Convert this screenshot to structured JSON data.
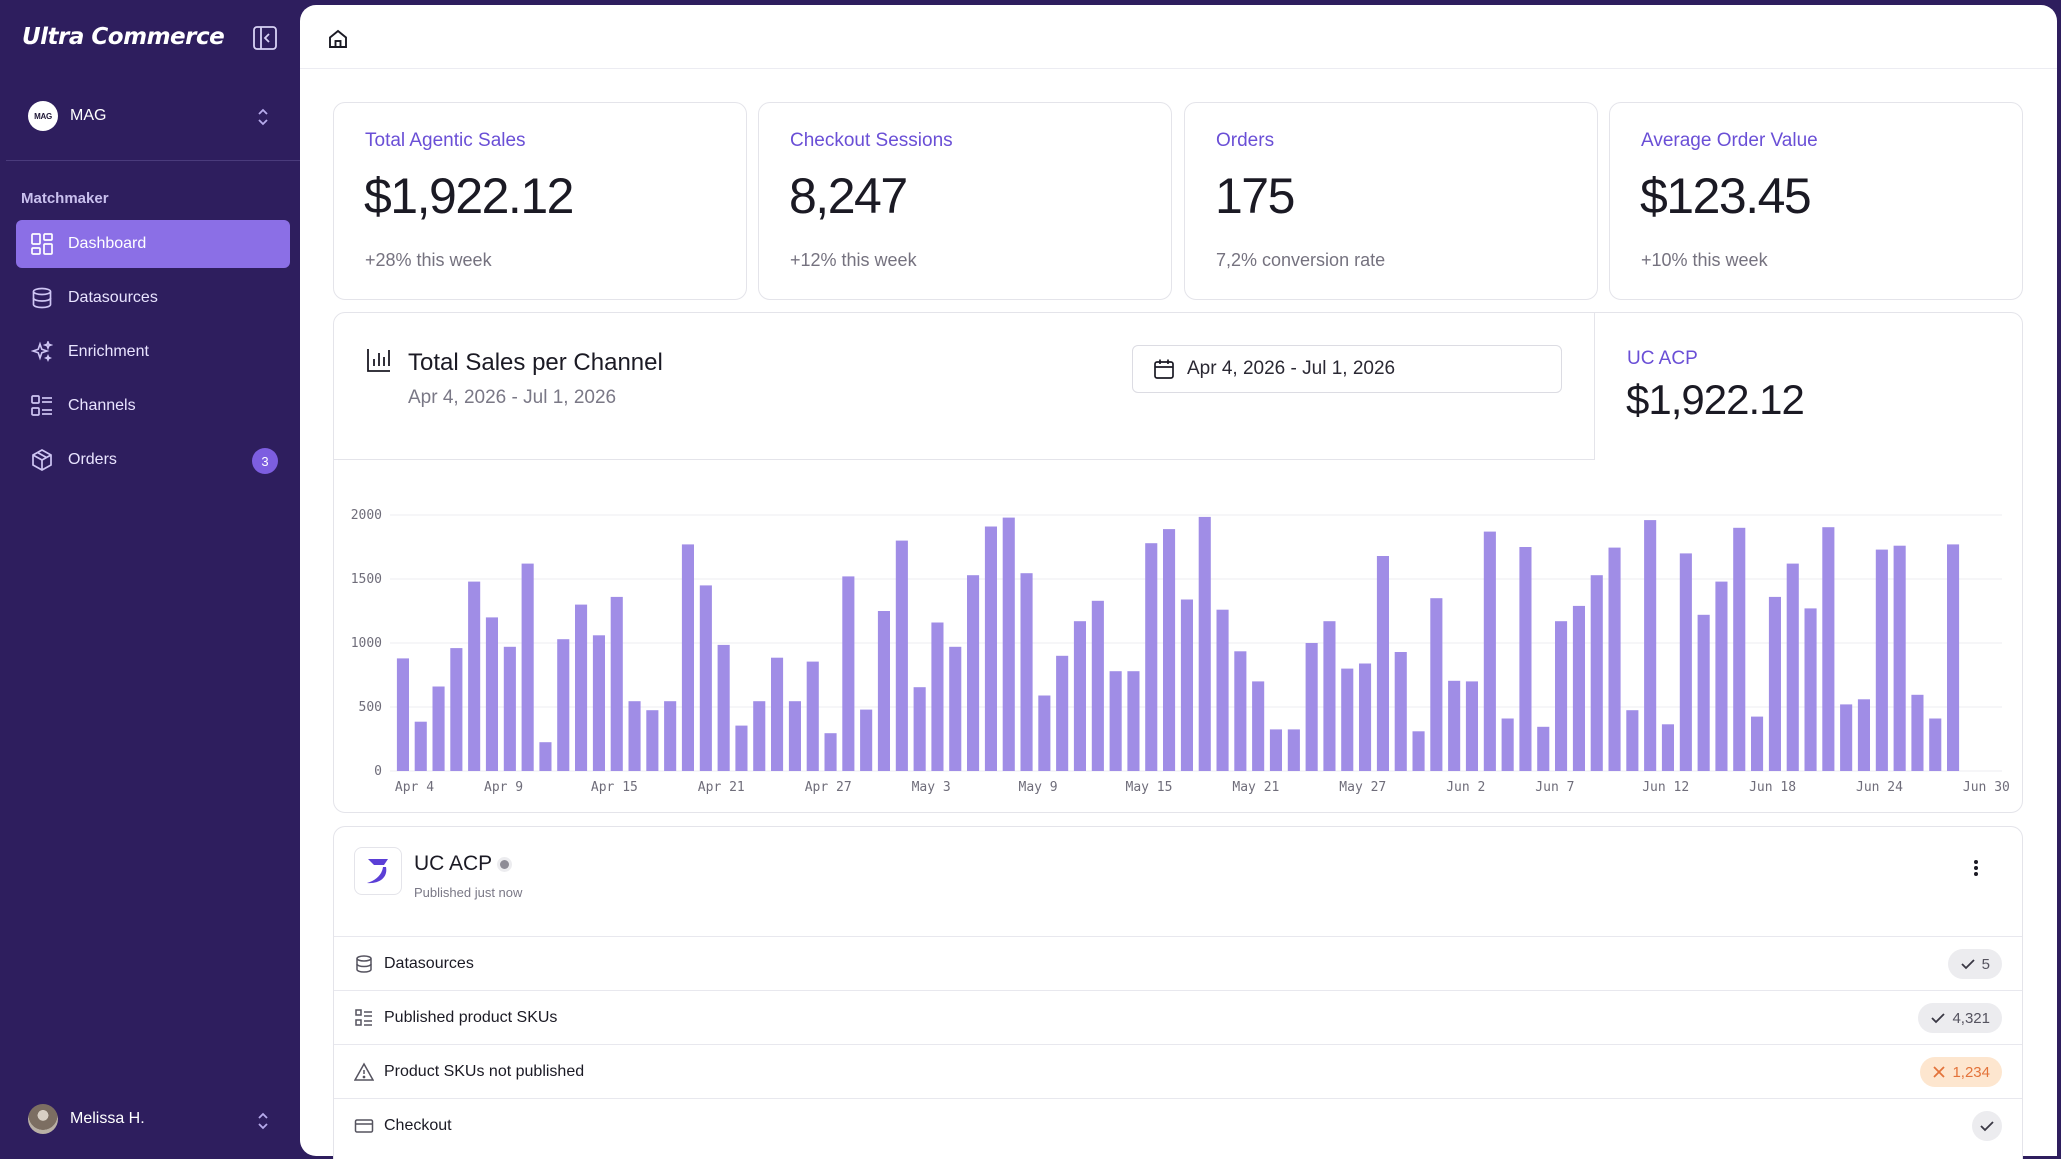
{
  "brand": "Ultra Commerce",
  "org": {
    "avatar_text": "MAG",
    "name": "MAG"
  },
  "sidebar": {
    "section": "Matchmaker",
    "items": [
      {
        "label": "Dashboard",
        "icon": "dashboard-icon",
        "active": true
      },
      {
        "label": "Datasources",
        "icon": "database-icon"
      },
      {
        "label": "Enrichment",
        "icon": "sparkles-icon"
      },
      {
        "label": "Channels",
        "icon": "channels-icon"
      },
      {
        "label": "Orders",
        "icon": "package-icon",
        "badge": "3"
      }
    ]
  },
  "user": {
    "name": "Melissa H."
  },
  "kpis": [
    {
      "label": "Total Agentic Sales",
      "value": "$1,922.12",
      "sub": "+28% this week"
    },
    {
      "label": "Checkout Sessions",
      "value": "8,247",
      "sub": "+12% this week"
    },
    {
      "label": "Orders",
      "value": "175",
      "sub": "7,2% conversion rate"
    },
    {
      "label": "Average Order Value",
      "value": "$123.45",
      "sub": "+10% this week"
    }
  ],
  "chart_panel": {
    "title": "Total Sales per Channel",
    "subtitle": "Apr 4, 2026 - Jul 1, 2026",
    "date_range": "Apr 4, 2026 - Jul 1, 2026",
    "channel_label": "UC ACP",
    "channel_total": "$1,922.12"
  },
  "chart_data": {
    "type": "bar",
    "ylim": [
      0,
      2000
    ],
    "y_ticks": [
      "2000",
      "1500",
      "1000",
      "500",
      "0"
    ],
    "x_tick_labels": [
      "Apr 4",
      "Apr 9",
      "Apr 15",
      "Apr 21",
      "Apr 27",
      "May 3",
      "May 9",
      "May 15",
      "May 21",
      "May 27",
      "Jun 2",
      "Jun 7",
      "Jun 12",
      "Jun 18",
      "Jun 24",
      "Jun 30"
    ],
    "grid": true,
    "colors": {
      "bar": "#a08de6"
    },
    "values": [
      880,
      385,
      660,
      960,
      1480,
      1200,
      970,
      1620,
      225,
      1030,
      1300,
      1060,
      1360,
      545,
      475,
      545,
      1770,
      1450,
      985,
      355,
      545,
      885,
      545,
      855,
      295,
      1520,
      480,
      1250,
      1800,
      655,
      1160,
      970,
      1530,
      1910,
      1980,
      1545,
      590,
      900,
      1170,
      1330,
      780,
      780,
      1780,
      1890,
      1340,
      1985,
      1260,
      935,
      700,
      325,
      325,
      1000,
      1170,
      800,
      840,
      1680,
      930,
      310,
      1350,
      705,
      700,
      1870,
      410,
      1750,
      345,
      1170,
      1290,
      1530,
      1745,
      475,
      1960,
      365,
      1700,
      1220,
      1480,
      1900,
      425,
      1360,
      1620,
      1270,
      1905,
      520,
      560,
      1730,
      1760,
      595,
      410,
      1770
    ]
  },
  "channel_card": {
    "name": "UC ACP",
    "status": "Published just now",
    "rows": [
      {
        "label": "Datasources",
        "value": "5",
        "state": "ok"
      },
      {
        "label": "Published product SKUs",
        "value": "4,321",
        "state": "ok"
      },
      {
        "label": "Product SKUs not published",
        "value": "1,234",
        "state": "warn"
      },
      {
        "label": "Checkout",
        "value": "",
        "state": "ok"
      }
    ]
  }
}
